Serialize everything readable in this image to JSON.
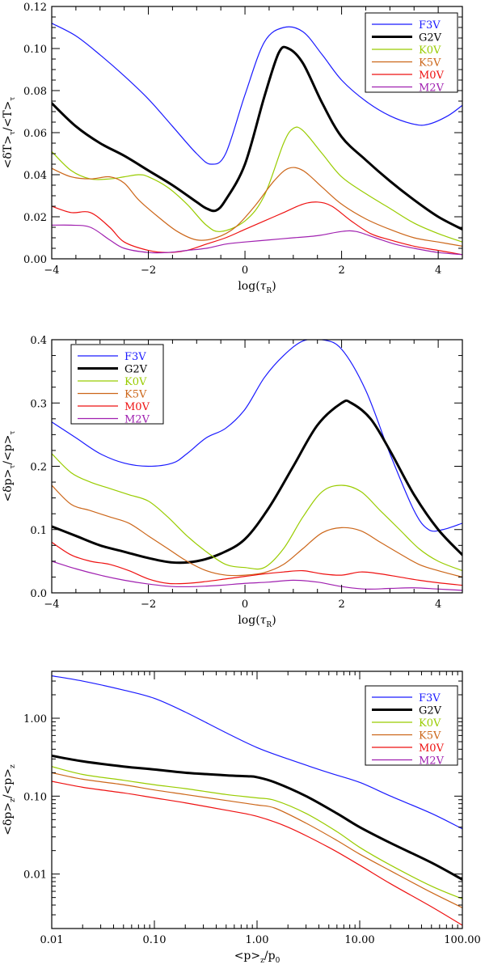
{
  "figure": {
    "panels": [
      {
        "id": "top"
      },
      {
        "id": "middle"
      },
      {
        "id": "bottom"
      }
    ]
  },
  "chart_data": [
    {
      "type": "line",
      "ylabel": "<δT>τ/<T>τ",
      "xlabel": "log(τR)",
      "xlim": [
        -4,
        4.5
      ],
      "ylim": [
        0,
        0.12
      ],
      "x_ticks": [
        -4,
        -2,
        0,
        2,
        4
      ],
      "x_tick_labels": [
        "−4",
        "−2",
        "0",
        "2",
        "4"
      ],
      "y_ticks": [
        0,
        0.02,
        0.04,
        0.06,
        0.08,
        0.1,
        0.12
      ],
      "y_tick_labels": [
        "0.00",
        "0.02",
        "0.04",
        "0.06",
        "0.08",
        "0.10",
        "0.12"
      ],
      "legend_position": "top-right",
      "series": [
        {
          "name": "F3V",
          "color": "#1a1aff",
          "width": 1.2,
          "x": [
            -4,
            -3.5,
            -3,
            -2.5,
            -2,
            -1.5,
            -1,
            -0.7,
            -0.4,
            0,
            0.4,
            0.8,
            1.2,
            1.6,
            2,
            2.5,
            3,
            3.5,
            3.8,
            4.2,
            4.5
          ],
          "y": [
            0.112,
            0.106,
            0.097,
            0.087,
            0.076,
            0.063,
            0.05,
            0.045,
            0.05,
            0.078,
            0.103,
            0.11,
            0.108,
            0.097,
            0.085,
            0.075,
            0.068,
            0.064,
            0.064,
            0.068,
            0.073
          ]
        },
        {
          "name": "G2V",
          "color": "#000000",
          "width": 3,
          "x": [
            -4,
            -3.5,
            -3,
            -2.5,
            -2,
            -1.5,
            -1,
            -0.8,
            -0.6,
            -0.4,
            0,
            0.4,
            0.7,
            0.9,
            1.2,
            1.6,
            2,
            2.5,
            3,
            3.5,
            4,
            4.5
          ],
          "y": [
            0.074,
            0.063,
            0.055,
            0.049,
            0.042,
            0.035,
            0.027,
            0.024,
            0.023,
            0.028,
            0.045,
            0.077,
            0.098,
            0.1,
            0.093,
            0.074,
            0.058,
            0.047,
            0.037,
            0.028,
            0.02,
            0.014
          ]
        },
        {
          "name": "K0V",
          "color": "#99cc00",
          "width": 1.2,
          "x": [
            -4,
            -3.6,
            -3.2,
            -2.8,
            -2.5,
            -2.2,
            -2,
            -1.6,
            -1.2,
            -0.8,
            -0.5,
            0,
            0.4,
            0.8,
            1,
            1.2,
            1.6,
            2,
            2.5,
            3,
            3.5,
            4,
            4.5
          ],
          "y": [
            0.051,
            0.042,
            0.038,
            0.038,
            0.039,
            0.04,
            0.039,
            0.034,
            0.026,
            0.016,
            0.013,
            0.018,
            0.03,
            0.055,
            0.062,
            0.061,
            0.05,
            0.039,
            0.031,
            0.024,
            0.017,
            0.012,
            0.008
          ]
        },
        {
          "name": "K5V",
          "color": "#cc6619",
          "width": 1.2,
          "x": [
            -4,
            -3.6,
            -3.2,
            -2.8,
            -2.5,
            -2.2,
            -1.8,
            -1.4,
            -1,
            -0.6,
            -0.2,
            0.2,
            0.6,
            0.9,
            1.2,
            1.6,
            2,
            2.5,
            3,
            3.5,
            4,
            4.5
          ],
          "y": [
            0.043,
            0.039,
            0.038,
            0.039,
            0.036,
            0.028,
            0.02,
            0.013,
            0.009,
            0.01,
            0.015,
            0.025,
            0.037,
            0.043,
            0.042,
            0.034,
            0.026,
            0.019,
            0.014,
            0.01,
            0.008,
            0.006
          ]
        },
        {
          "name": "M0V",
          "color": "#ee1111",
          "width": 1.2,
          "x": [
            -4,
            -3.6,
            -3.2,
            -2.8,
            -2.5,
            -2,
            -1.6,
            -1.2,
            -0.8,
            -0.4,
            0,
            0.4,
            0.8,
            1.2,
            1.5,
            1.8,
            2.2,
            2.6,
            3,
            3.5,
            4,
            4.5
          ],
          "y": [
            0.025,
            0.022,
            0.022,
            0.015,
            0.008,
            0.004,
            0.003,
            0.004,
            0.007,
            0.01,
            0.014,
            0.018,
            0.022,
            0.026,
            0.027,
            0.025,
            0.018,
            0.012,
            0.009,
            0.006,
            0.004,
            0.002
          ]
        },
        {
          "name": "M2V",
          "color": "#a020b0",
          "width": 1.2,
          "x": [
            -4,
            -3.6,
            -3.2,
            -2.8,
            -2.5,
            -2,
            -1.6,
            -1.2,
            -0.8,
            -0.4,
            0,
            0.5,
            1,
            1.5,
            2,
            2.3,
            2.7,
            3.1,
            3.5,
            4,
            4.5
          ],
          "y": [
            0.016,
            0.016,
            0.015,
            0.009,
            0.005,
            0.003,
            0.003,
            0.004,
            0.005,
            0.007,
            0.008,
            0.009,
            0.01,
            0.011,
            0.013,
            0.013,
            0.01,
            0.007,
            0.005,
            0.003,
            0.002
          ]
        }
      ]
    },
    {
      "type": "line",
      "ylabel": "<δp>τ/<p>τ",
      "xlabel": "log(τR)",
      "xlim": [
        -4,
        4.5
      ],
      "ylim": [
        0,
        0.4
      ],
      "x_ticks": [
        -4,
        -2,
        0,
        2,
        4
      ],
      "x_tick_labels": [
        "−4",
        "−2",
        "0",
        "2",
        "4"
      ],
      "y_ticks": [
        0,
        0.1,
        0.2,
        0.3,
        0.4
      ],
      "y_tick_labels": [
        "0.0",
        "0.1",
        "0.2",
        "0.3",
        "0.4"
      ],
      "legend_position": "top-left",
      "series": [
        {
          "name": "F3V",
          "color": "#1a1aff",
          "width": 1.2,
          "x": [
            -4,
            -3.5,
            -3,
            -2.5,
            -2,
            -1.5,
            -1.2,
            -0.8,
            -0.4,
            0,
            0.4,
            0.8,
            1.2,
            1.6,
            2,
            2.5,
            3,
            3.5,
            3.8,
            4.1,
            4.5
          ],
          "y": [
            0.27,
            0.245,
            0.22,
            0.205,
            0.2,
            0.205,
            0.22,
            0.245,
            0.26,
            0.29,
            0.34,
            0.375,
            0.398,
            0.4,
            0.385,
            0.32,
            0.22,
            0.13,
            0.1,
            0.1,
            0.11
          ]
        },
        {
          "name": "G2V",
          "color": "#000000",
          "width": 3,
          "x": [
            -4,
            -3.5,
            -3,
            -2.5,
            -2,
            -1.5,
            -1,
            -0.5,
            0,
            0.5,
            1,
            1.5,
            2,
            2.2,
            2.6,
            3,
            3.5,
            4,
            4.5
          ],
          "y": [
            0.105,
            0.09,
            0.075,
            0.065,
            0.055,
            0.048,
            0.05,
            0.062,
            0.085,
            0.135,
            0.2,
            0.265,
            0.3,
            0.3,
            0.275,
            0.225,
            0.155,
            0.1,
            0.06
          ]
        },
        {
          "name": "K0V",
          "color": "#99cc00",
          "width": 1.2,
          "x": [
            -4,
            -3.6,
            -3.2,
            -2.8,
            -2.4,
            -2,
            -1.6,
            -1.2,
            -0.8,
            -0.4,
            0,
            0.4,
            0.8,
            1.2,
            1.6,
            2,
            2.4,
            2.8,
            3.2,
            3.6,
            4,
            4.5
          ],
          "y": [
            0.22,
            0.19,
            0.175,
            0.165,
            0.155,
            0.145,
            0.12,
            0.09,
            0.065,
            0.045,
            0.04,
            0.04,
            0.07,
            0.12,
            0.16,
            0.17,
            0.16,
            0.13,
            0.1,
            0.07,
            0.05,
            0.035
          ]
        },
        {
          "name": "K5V",
          "color": "#cc6619",
          "width": 1.2,
          "x": [
            -4,
            -3.6,
            -3.2,
            -2.8,
            -2.4,
            -2,
            -1.6,
            -1.2,
            -0.8,
            -0.4,
            0,
            0.4,
            0.8,
            1.2,
            1.6,
            2,
            2.4,
            2.8,
            3.2,
            3.6,
            4,
            4.5
          ],
          "y": [
            0.17,
            0.14,
            0.13,
            0.12,
            0.11,
            0.09,
            0.07,
            0.05,
            0.035,
            0.028,
            0.028,
            0.032,
            0.045,
            0.07,
            0.095,
            0.103,
            0.098,
            0.08,
            0.062,
            0.045,
            0.035,
            0.025
          ]
        },
        {
          "name": "M0V",
          "color": "#ee1111",
          "width": 1.2,
          "x": [
            -4,
            -3.6,
            -3.2,
            -2.8,
            -2.4,
            -2,
            -1.6,
            -1.2,
            -0.8,
            -0.4,
            0,
            0.4,
            0.8,
            1.2,
            1.6,
            2,
            2.4,
            2.8,
            3.2,
            3.6,
            4,
            4.5
          ],
          "y": [
            0.08,
            0.06,
            0.05,
            0.045,
            0.035,
            0.022,
            0.015,
            0.015,
            0.018,
            0.022,
            0.026,
            0.03,
            0.033,
            0.035,
            0.03,
            0.028,
            0.033,
            0.03,
            0.025,
            0.02,
            0.016,
            0.012
          ]
        },
        {
          "name": "M2V",
          "color": "#a020b0",
          "width": 1.2,
          "x": [
            -4,
            -3.5,
            -3,
            -2.5,
            -2,
            -1.5,
            -1,
            -0.5,
            0,
            0.5,
            1,
            1.5,
            2,
            2.5,
            3,
            3.5,
            4,
            4.5
          ],
          "y": [
            0.05,
            0.038,
            0.028,
            0.02,
            0.014,
            0.01,
            0.01,
            0.012,
            0.015,
            0.017,
            0.02,
            0.017,
            0.01,
            0.006,
            0.007,
            0.008,
            0.006,
            0.004
          ]
        }
      ]
    },
    {
      "type": "line",
      "ylabel": "<δp>z/<p>z",
      "xlabel": "<p>z/p0",
      "xscale": "log",
      "yscale": "log",
      "xlim": [
        0.01,
        100
      ],
      "ylim": [
        0.002,
        4
      ],
      "x_ticks": [
        0.01,
        0.1,
        1,
        10,
        100
      ],
      "x_tick_labels": [
        "0.01",
        "0.10",
        "1.00",
        "10.00",
        "100.00"
      ],
      "y_ticks": [
        0.01,
        0.1,
        1
      ],
      "y_tick_labels": [
        "0.01",
        "0.10",
        "1.00"
      ],
      "legend_position": "top-right",
      "series": [
        {
          "name": "F3V",
          "color": "#1a1aff",
          "width": 1.2,
          "x": [
            0.01,
            0.02,
            0.05,
            0.1,
            0.2,
            0.5,
            1,
            2,
            5,
            10,
            20,
            50,
            100
          ],
          "y": [
            3.5,
            3.0,
            2.3,
            1.8,
            1.2,
            0.65,
            0.42,
            0.3,
            0.2,
            0.15,
            0.1,
            0.06,
            0.038
          ]
        },
        {
          "name": "G2V",
          "color": "#000000",
          "width": 3,
          "x": [
            0.01,
            0.02,
            0.05,
            0.1,
            0.2,
            0.5,
            0.8,
            1,
            1.5,
            3,
            6,
            10,
            20,
            50,
            100
          ],
          "y": [
            0.33,
            0.28,
            0.24,
            0.22,
            0.2,
            0.185,
            0.18,
            0.175,
            0.15,
            0.1,
            0.06,
            0.04,
            0.025,
            0.014,
            0.0085
          ]
        },
        {
          "name": "K0V",
          "color": "#99cc00",
          "width": 1.2,
          "x": [
            0.01,
            0.02,
            0.05,
            0.1,
            0.2,
            0.5,
            1,
            1.5,
            3,
            6,
            10,
            20,
            50,
            100
          ],
          "y": [
            0.24,
            0.19,
            0.16,
            0.14,
            0.125,
            0.105,
            0.095,
            0.088,
            0.06,
            0.035,
            0.022,
            0.013,
            0.007,
            0.0048
          ]
        },
        {
          "name": "K5V",
          "color": "#cc6619",
          "width": 1.2,
          "x": [
            0.01,
            0.02,
            0.05,
            0.1,
            0.2,
            0.5,
            1,
            1.5,
            3,
            6,
            10,
            20,
            50,
            100
          ],
          "y": [
            0.2,
            0.165,
            0.14,
            0.12,
            0.105,
            0.088,
            0.077,
            0.07,
            0.045,
            0.027,
            0.018,
            0.011,
            0.0058,
            0.0037
          ]
        },
        {
          "name": "M0V",
          "color": "#ee1111",
          "width": 1.2,
          "x": [
            0.01,
            0.02,
            0.05,
            0.1,
            0.2,
            0.5,
            1,
            2,
            5,
            10,
            20,
            50,
            100
          ],
          "y": [
            0.155,
            0.13,
            0.11,
            0.095,
            0.082,
            0.066,
            0.055,
            0.04,
            0.022,
            0.013,
            0.0075,
            0.0038,
            0.0022
          ]
        }
      ]
    }
  ]
}
